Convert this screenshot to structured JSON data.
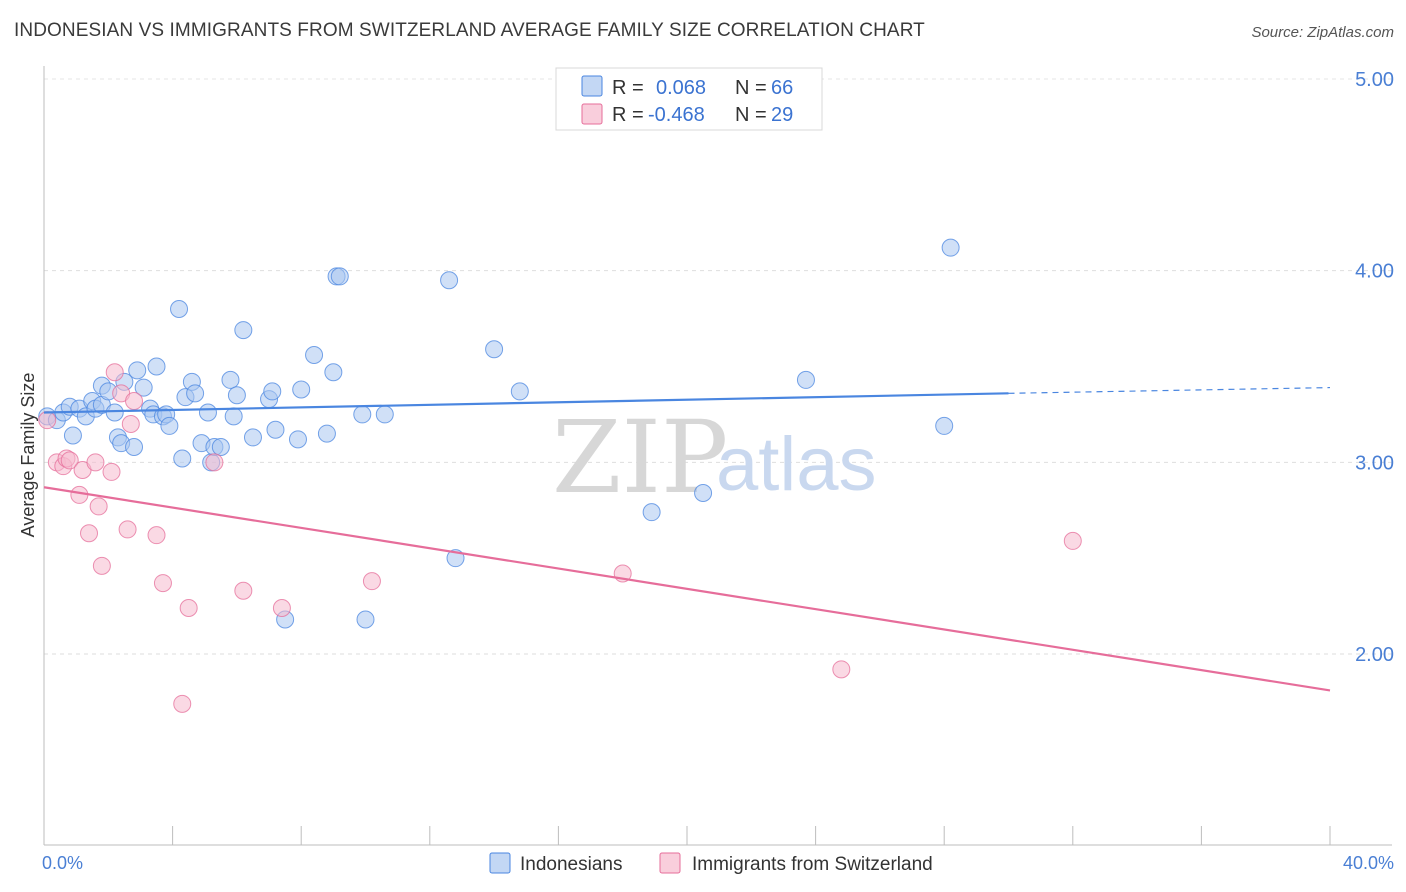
{
  "title": "INDONESIAN VS IMMIGRANTS FROM SWITZERLAND AVERAGE FAMILY SIZE CORRELATION CHART",
  "source": "Source: ZipAtlas.com",
  "watermark": {
    "zip": "ZIP",
    "atlas": "atlas"
  },
  "colors": {
    "blue": "#4a86e0",
    "blue_fill": "#a9c6f0",
    "pink": "#e66d9a",
    "pink_fill": "#f6b9cd",
    "axis_text": "#4a7fd4"
  },
  "legend": {
    "rows": [
      {
        "r_label": "R =",
        "r_value": "0.068",
        "n_label": "N =",
        "n_value": "66"
      },
      {
        "r_label": "R =",
        "r_value": "-0.468",
        "n_label": "N =",
        "n_value": "29"
      }
    ]
  },
  "bottom_legend": [
    "Indonesians",
    "Immigrants from Switzerland"
  ],
  "chart_data": {
    "type": "scatter",
    "title": "INDONESIAN VS IMMIGRANTS FROM SWITZERLAND AVERAGE FAMILY SIZE CORRELATION CHART",
    "xlabel": "",
    "ylabel": "Average Family Size",
    "xlim": [
      0,
      40
    ],
    "ylim": [
      1.0,
      5.1
    ],
    "x_tick_labels": [
      "0.0%",
      "40.0%"
    ],
    "y_ticks": [
      2.0,
      3.0,
      4.0,
      5.0
    ],
    "y_tick_labels": [
      "2.00",
      "3.00",
      "4.00",
      "5.00"
    ],
    "grid": true,
    "legend_position": "top-center",
    "series": [
      {
        "name": "Indonesians",
        "color": "#4a86e0",
        "points": [
          [
            0.1,
            3.24
          ],
          [
            0.4,
            3.22
          ],
          [
            0.6,
            3.26
          ],
          [
            0.8,
            3.29
          ],
          [
            1.1,
            3.28
          ],
          [
            1.3,
            3.24
          ],
          [
            1.5,
            3.32
          ],
          [
            1.6,
            3.28
          ],
          [
            0.9,
            3.14
          ],
          [
            1.8,
            3.3
          ],
          [
            1.8,
            3.4
          ],
          [
            2.0,
            3.37
          ],
          [
            2.2,
            3.26
          ],
          [
            2.3,
            3.13
          ],
          [
            2.4,
            3.1
          ],
          [
            2.5,
            3.42
          ],
          [
            2.8,
            3.08
          ],
          [
            2.9,
            3.48
          ],
          [
            3.1,
            3.39
          ],
          [
            3.3,
            3.28
          ],
          [
            3.4,
            3.25
          ],
          [
            3.5,
            3.5
          ],
          [
            3.7,
            3.24
          ],
          [
            3.8,
            3.25
          ],
          [
            3.9,
            3.19
          ],
          [
            4.2,
            3.8
          ],
          [
            4.3,
            3.02
          ],
          [
            4.4,
            3.34
          ],
          [
            4.6,
            3.42
          ],
          [
            4.7,
            3.36
          ],
          [
            4.9,
            3.1
          ],
          [
            5.1,
            3.26
          ],
          [
            5.2,
            3.0
          ],
          [
            5.3,
            3.08
          ],
          [
            5.5,
            3.08
          ],
          [
            5.8,
            3.43
          ],
          [
            5.9,
            3.24
          ],
          [
            6.0,
            3.35
          ],
          [
            6.2,
            3.69
          ],
          [
            6.5,
            3.13
          ],
          [
            7.0,
            3.33
          ],
          [
            7.1,
            3.37
          ],
          [
            7.2,
            3.17
          ],
          [
            7.5,
            2.18
          ],
          [
            7.9,
            3.12
          ],
          [
            8.0,
            3.38
          ],
          [
            8.4,
            3.56
          ],
          [
            8.8,
            3.15
          ],
          [
            9.0,
            3.47
          ],
          [
            9.1,
            3.97
          ],
          [
            9.2,
            3.97
          ],
          [
            9.9,
            3.25
          ],
          [
            10.0,
            2.18
          ],
          [
            10.6,
            3.25
          ],
          [
            12.6,
            3.95
          ],
          [
            12.8,
            2.5
          ],
          [
            14.0,
            3.59
          ],
          [
            14.8,
            3.37
          ],
          [
            18.9,
            2.74
          ],
          [
            20.5,
            2.84
          ],
          [
            23.7,
            3.43
          ],
          [
            28.0,
            3.19
          ],
          [
            28.2,
            4.12
          ]
        ],
        "trend": {
          "x": [
            0,
            30
          ],
          "y": [
            3.26,
            3.36
          ],
          "dashed_x": [
            30,
            40
          ],
          "dashed_y": [
            3.36,
            3.39
          ]
        }
      },
      {
        "name": "Immigrants from Switzerland",
        "color": "#e66d9a",
        "points": [
          [
            0.1,
            3.22
          ],
          [
            0.4,
            3.0
          ],
          [
            0.6,
            2.98
          ],
          [
            0.7,
            3.02
          ],
          [
            0.8,
            3.01
          ],
          [
            1.1,
            2.83
          ],
          [
            1.2,
            2.96
          ],
          [
            1.4,
            2.63
          ],
          [
            1.6,
            3.0
          ],
          [
            1.7,
            2.77
          ],
          [
            1.8,
            2.46
          ],
          [
            2.1,
            2.95
          ],
          [
            2.2,
            3.47
          ],
          [
            2.4,
            3.36
          ],
          [
            2.6,
            2.65
          ],
          [
            2.7,
            3.2
          ],
          [
            2.8,
            3.32
          ],
          [
            3.5,
            2.62
          ],
          [
            3.7,
            2.37
          ],
          [
            4.5,
            2.24
          ],
          [
            4.3,
            1.74
          ],
          [
            5.3,
            3.0
          ],
          [
            6.2,
            2.33
          ],
          [
            7.4,
            2.24
          ],
          [
            10.2,
            2.38
          ],
          [
            18.0,
            2.42
          ],
          [
            24.8,
            1.92
          ],
          [
            32.0,
            2.59
          ]
        ],
        "trend": {
          "x": [
            0,
            40
          ],
          "y": [
            2.87,
            1.81
          ]
        }
      }
    ]
  }
}
